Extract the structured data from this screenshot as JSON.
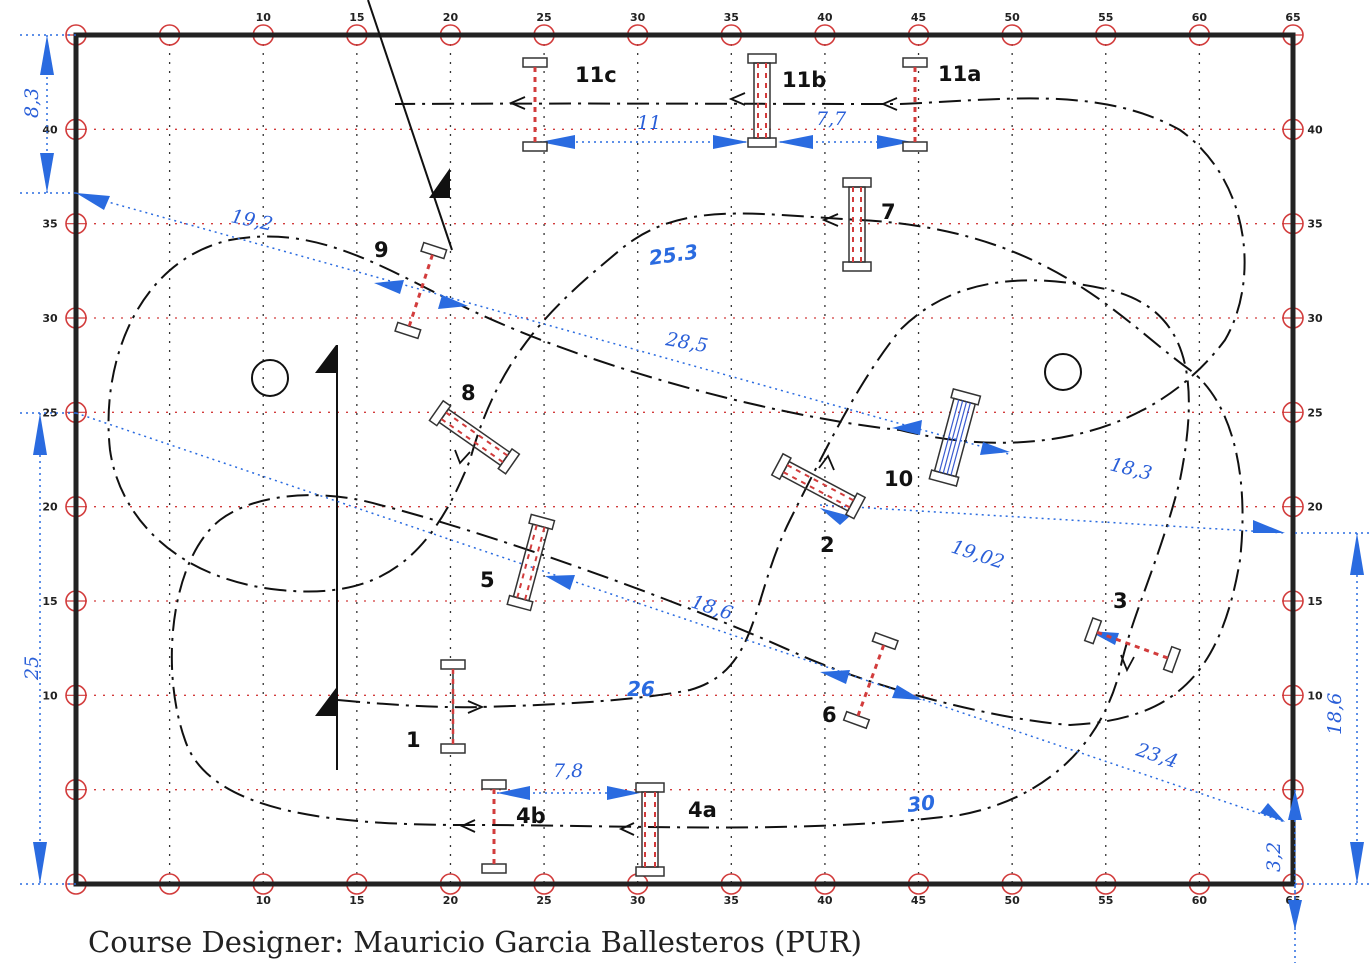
{
  "course": {
    "designer": "Course Designer: Mauricio Garcia Ballesteros (PUR)",
    "x_ticks": [
      "10",
      "15",
      "20",
      "25",
      "30",
      "35",
      "40",
      "45",
      "50",
      "55",
      "60",
      "65"
    ],
    "y_ticks": [
      "40",
      "35",
      "30",
      "25",
      "20",
      "15",
      "10"
    ],
    "fences": [
      {
        "id": "f1",
        "label": "1"
      },
      {
        "id": "f2",
        "label": "2"
      },
      {
        "id": "f3",
        "label": "3"
      },
      {
        "id": "f4a",
        "label": "4a"
      },
      {
        "id": "f4b",
        "label": "4b"
      },
      {
        "id": "f5",
        "label": "5"
      },
      {
        "id": "f6",
        "label": "6"
      },
      {
        "id": "f7",
        "label": "7"
      },
      {
        "id": "f8",
        "label": "8"
      },
      {
        "id": "f9",
        "label": "9"
      },
      {
        "id": "f10",
        "label": "10"
      },
      {
        "id": "f11a",
        "label": "11a"
      },
      {
        "id": "f11b",
        "label": "11b"
      },
      {
        "id": "f11c",
        "label": "11c"
      }
    ],
    "distances": {
      "d11": "11",
      "d77": "7,7",
      "d192": "19,2",
      "d285": "28,5",
      "d183": "18,3",
      "d1902": "19,02",
      "d186": "18,6",
      "d234": "23,4",
      "d78": "7,8",
      "d83": "8,3",
      "d25": "25",
      "d186r": "18,6",
      "d32": "3,2"
    },
    "strides": {
      "s253": "25.3",
      "s26": "26",
      "s30": "30"
    },
    "colors": {
      "accent": "#2a6be0",
      "grid": "#d23c3c",
      "border": "#222222"
    }
  }
}
